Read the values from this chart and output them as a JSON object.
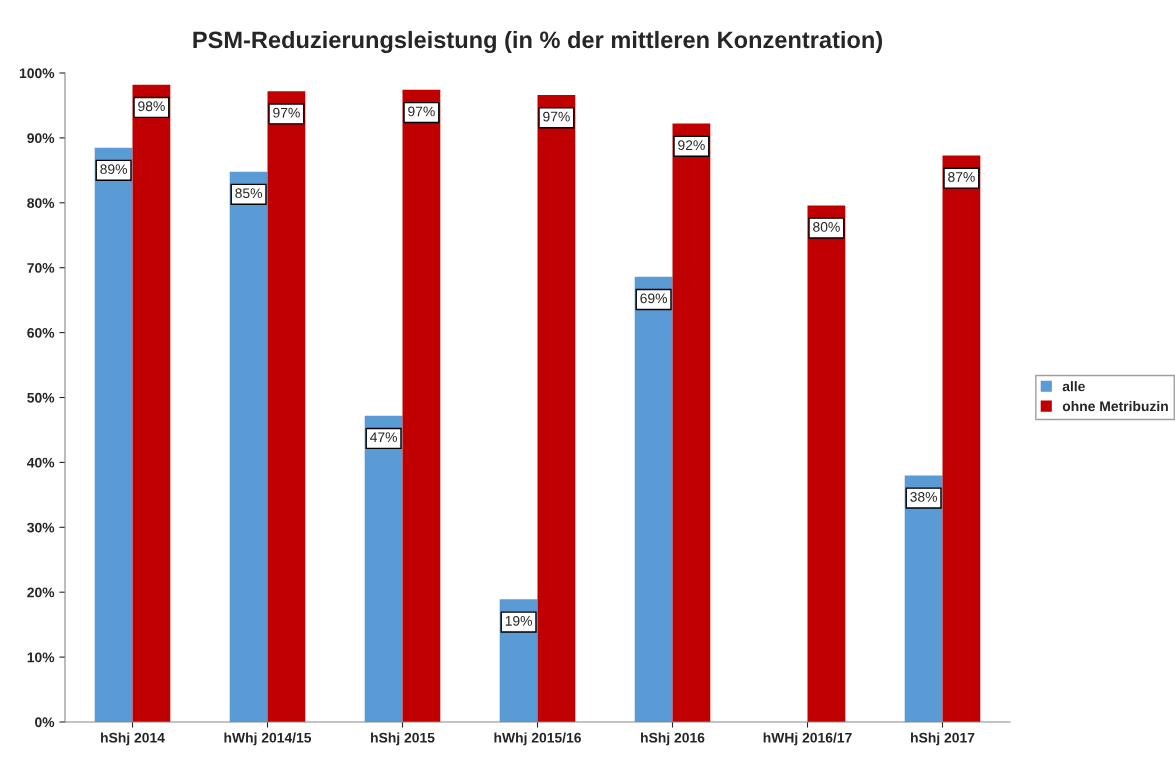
{
  "chart_data": {
    "type": "bar",
    "title": "PSM-Reduzierungsleistung (in % der mittleren Konzentration)",
    "categories": [
      "hShj 2014",
      "hWhj 2014/15",
      "hShj 2015",
      "hWhj 2015/16",
      "hShj 2016",
      "hWHj 2016/17",
      "hShj 2017"
    ],
    "series": [
      {
        "name": "alle",
        "color": "#5b9bd5",
        "values": [
          88.5,
          84.8,
          47.2,
          18.9,
          68.6,
          0,
          38.0
        ],
        "value_labels": [
          "89%",
          "85%",
          "47%",
          "19%",
          "69%",
          null,
          "38%"
        ]
      },
      {
        "name": "ohne Metribuzin",
        "color": "#c00000",
        "values": [
          98.2,
          97.2,
          97.4,
          96.6,
          92.2,
          79.6,
          87.3
        ],
        "value_labels": [
          "98%",
          "97%",
          "97%",
          "97%",
          "92%",
          "80%",
          "87%"
        ]
      }
    ],
    "ylim": [
      0,
      100
    ],
    "yticks": [
      {
        "value": 0,
        "label": "0%"
      },
      {
        "value": 10,
        "label": "10%"
      },
      {
        "value": 20,
        "label": "20%"
      },
      {
        "value": 30,
        "label": "30%"
      },
      {
        "value": 40,
        "label": "40%"
      },
      {
        "value": 50,
        "label": "50%"
      },
      {
        "value": 60,
        "label": "60%"
      },
      {
        "value": 70,
        "label": "70%"
      },
      {
        "value": 80,
        "label": "80%"
      },
      {
        "value": 90,
        "label": "90%"
      },
      {
        "value": 100,
        "label": "100%"
      }
    ],
    "grid": false,
    "legend": "right"
  }
}
